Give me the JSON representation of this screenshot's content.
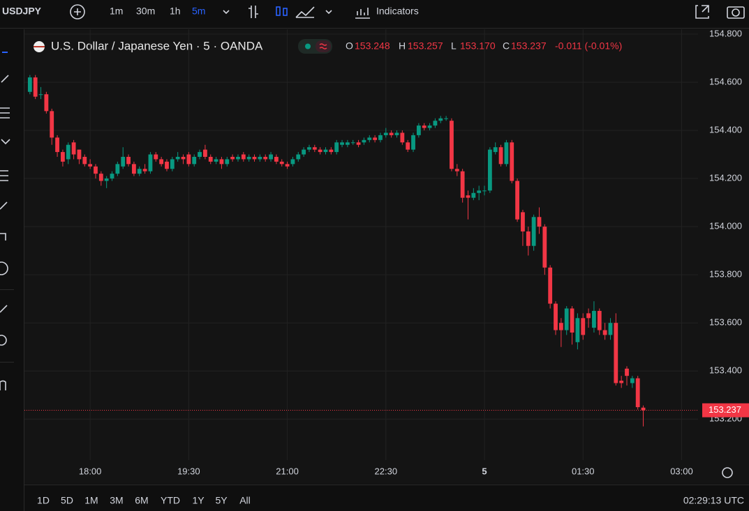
{
  "toolbar": {
    "symbol": "USDJPY",
    "intervals": [
      "1m",
      "30m",
      "1h",
      "5m"
    ],
    "indicators": "Indicators"
  },
  "chart_data": {
    "type": "candlestick",
    "title": "U.S. Dollar / Japanese Yen · 5 · OANDA",
    "legend": [
      "O",
      "153.248",
      "H",
      "153.257",
      "L",
      "153.170",
      "C",
      "153.237",
      "-0.011 (-0.01%)"
    ],
    "open": [
      154.56,
      154.62,
      154.55,
      154.55,
      154.48,
      154.37,
      154.31,
      154.28,
      154.35,
      154.32,
      154.29,
      154.26,
      154.25,
      154.22,
      154.19,
      154.2,
      154.22,
      154.25,
      154.29,
      154.26,
      154.22,
      154.24,
      154.23,
      154.3,
      154.28,
      154.27,
      154.24,
      154.28,
      154.29,
      154.3,
      154.26,
      154.29,
      154.32,
      154.29,
      154.27,
      154.28,
      154.26,
      154.29,
      154.28,
      154.3,
      154.28,
      154.29,
      154.28,
      154.29,
      154.28,
      154.29,
      154.27,
      154.26,
      154.26,
      154.28,
      154.3,
      154.32,
      154.33,
      154.32,
      154.31,
      154.32,
      154.31,
      154.34,
      154.34,
      154.35,
      154.35,
      154.35,
      154.36,
      154.37,
      154.36,
      154.38,
      154.39,
      154.38,
      154.39,
      154.35,
      154.32,
      154.38,
      154.42,
      154.41,
      154.42,
      154.44,
      154.45,
      154.44,
      154.24,
      154.23,
      154.13,
      154.12,
      154.14,
      154.15,
      154.15,
      154.31,
      154.33,
      154.26,
      154.35,
      154.19,
      154.06,
      153.98,
      153.92,
      154.04,
      154.0,
      153.83,
      153.68,
      153.6,
      153.57,
      153.66,
      153.52,
      153.62,
      153.64,
      153.58,
      153.65,
      153.57,
      153.55,
      153.6,
      153.36,
      153.41,
      153.35,
      153.37,
      153.248
    ],
    "high": [
      154.63,
      154.63,
      154.58,
      154.56,
      154.49,
      154.38,
      154.32,
      154.35,
      154.36,
      154.32,
      154.3,
      154.28,
      154.26,
      154.23,
      154.21,
      154.23,
      154.27,
      154.33,
      154.3,
      154.27,
      154.25,
      154.26,
      154.31,
      154.31,
      154.29,
      154.28,
      154.29,
      154.31,
      154.3,
      154.31,
      154.3,
      154.32,
      154.34,
      154.3,
      154.29,
      154.29,
      154.29,
      154.3,
      154.3,
      154.31,
      154.3,
      154.3,
      154.3,
      154.3,
      154.31,
      154.3,
      154.28,
      154.27,
      154.29,
      154.31,
      154.33,
      154.34,
      154.34,
      154.33,
      154.33,
      154.33,
      154.36,
      154.36,
      154.36,
      154.36,
      154.36,
      154.37,
      154.38,
      154.38,
      154.39,
      154.41,
      154.4,
      154.4,
      154.4,
      154.36,
      154.39,
      154.43,
      154.43,
      154.43,
      154.45,
      154.46,
      154.46,
      154.45,
      154.26,
      154.24,
      154.15,
      154.16,
      154.17,
      154.17,
      154.33,
      154.35,
      154.34,
      154.36,
      154.36,
      154.2,
      154.07,
      154.0,
      154.05,
      154.08,
      154.01,
      153.84,
      153.69,
      153.62,
      153.67,
      153.67,
      153.64,
      153.64,
      153.66,
      153.69,
      153.66,
      153.6,
      153.62,
      153.64,
      153.38,
      153.42,
      153.38,
      153.38,
      153.257
    ],
    "low": [
      154.55,
      154.53,
      154.53,
      154.47,
      154.34,
      154.29,
      154.25,
      154.26,
      154.28,
      154.26,
      154.25,
      154.24,
      154.2,
      154.17,
      154.16,
      154.19,
      154.21,
      154.24,
      154.25,
      154.21,
      154.21,
      154.22,
      154.22,
      154.27,
      154.25,
      154.23,
      154.23,
      154.27,
      154.26,
      154.25,
      154.25,
      154.28,
      154.28,
      154.26,
      154.26,
      154.24,
      154.25,
      154.27,
      154.27,
      154.27,
      154.27,
      154.27,
      154.27,
      154.27,
      154.27,
      154.26,
      154.25,
      154.24,
      154.25,
      154.27,
      154.29,
      154.31,
      154.31,
      154.3,
      154.3,
      154.3,
      154.3,
      154.33,
      154.33,
      154.34,
      154.33,
      154.34,
      154.35,
      154.35,
      154.35,
      154.37,
      154.37,
      154.37,
      154.34,
      154.31,
      154.31,
      154.37,
      154.4,
      154.4,
      154.41,
      154.43,
      154.44,
      154.23,
      154.21,
      154.1,
      154.03,
      154.11,
      154.11,
      154.13,
      154.14,
      154.3,
      154.25,
      154.25,
      154.18,
      154.02,
      153.92,
      153.88,
      153.9,
      153.97,
      153.8,
      153.66,
      153.55,
      153.5,
      153.55,
      153.51,
      153.49,
      153.53,
      153.58,
      153.56,
      153.55,
      153.53,
      153.53,
      153.34,
      153.33,
      153.34,
      153.33,
      153.24,
      153.17
    ],
    "close": [
      154.62,
      154.54,
      154.55,
      154.48,
      154.37,
      154.31,
      154.27,
      154.34,
      154.3,
      154.28,
      154.26,
      154.25,
      154.22,
      154.19,
      154.2,
      154.22,
      154.26,
      154.29,
      154.26,
      154.22,
      154.24,
      154.23,
      154.3,
      154.28,
      154.26,
      154.24,
      154.28,
      154.29,
      154.28,
      154.26,
      154.29,
      154.31,
      154.29,
      154.27,
      154.28,
      154.26,
      154.28,
      154.28,
      154.29,
      154.28,
      154.29,
      154.28,
      154.29,
      154.28,
      154.3,
      154.27,
      154.26,
      154.25,
      154.28,
      154.3,
      154.32,
      154.33,
      154.32,
      154.31,
      154.32,
      154.31,
      154.35,
      154.35,
      154.35,
      154.35,
      154.34,
      154.36,
      154.37,
      154.36,
      154.38,
      154.39,
      154.38,
      154.39,
      154.35,
      154.32,
      154.38,
      154.42,
      154.41,
      154.42,
      154.44,
      154.45,
      154.45,
      154.24,
      154.23,
      154.12,
      154.12,
      154.14,
      154.15,
      154.15,
      154.32,
      154.33,
      154.26,
      154.35,
      154.19,
      154.03,
      153.98,
      153.92,
      154.04,
      154.0,
      153.83,
      153.68,
      153.57,
      153.57,
      153.66,
      153.56,
      153.62,
      153.55,
      153.62,
      153.65,
      153.57,
      153.55,
      153.6,
      153.35,
      153.35,
      153.38,
      153.37,
      153.25,
      153.237
    ],
    "xlim": [
      -1,
      122
    ],
    "xticks": [
      {
        "value": 11,
        "label": "18:00"
      },
      {
        "value": 29,
        "label": "19:30"
      },
      {
        "value": 47,
        "label": "21:00"
      },
      {
        "value": 65,
        "label": "22:30"
      },
      {
        "value": 83,
        "label": "5"
      },
      {
        "value": 101,
        "label": "01:30"
      },
      {
        "value": 119,
        "label": "03:00"
      }
    ],
    "ylim": [
      153.03,
      154.82
    ],
    "yticks": [
      {
        "value": 154.8,
        "label": "154.800"
      },
      {
        "value": 154.6,
        "label": "154.600"
      },
      {
        "value": 154.4,
        "label": "154.400"
      },
      {
        "value": 154.2,
        "label": "154.200"
      },
      {
        "value": 154,
        "label": "154.000"
      },
      {
        "value": 153.8,
        "label": "153.800"
      },
      {
        "value": 153.6,
        "label": "153.600"
      },
      {
        "value": 153.4,
        "label": "153.400"
      },
      {
        "value": 153.2,
        "label": "153.200"
      }
    ],
    "last_price": 153.237,
    "up_color": "#089981",
    "down_color": "#f23645",
    "grid": true
  },
  "bottom": {
    "ranges": [
      "1D",
      "5D",
      "1M",
      "3M",
      "6M",
      "YTD",
      "1Y",
      "5Y",
      "All"
    ],
    "clock": "02:29:13 UTC"
  }
}
